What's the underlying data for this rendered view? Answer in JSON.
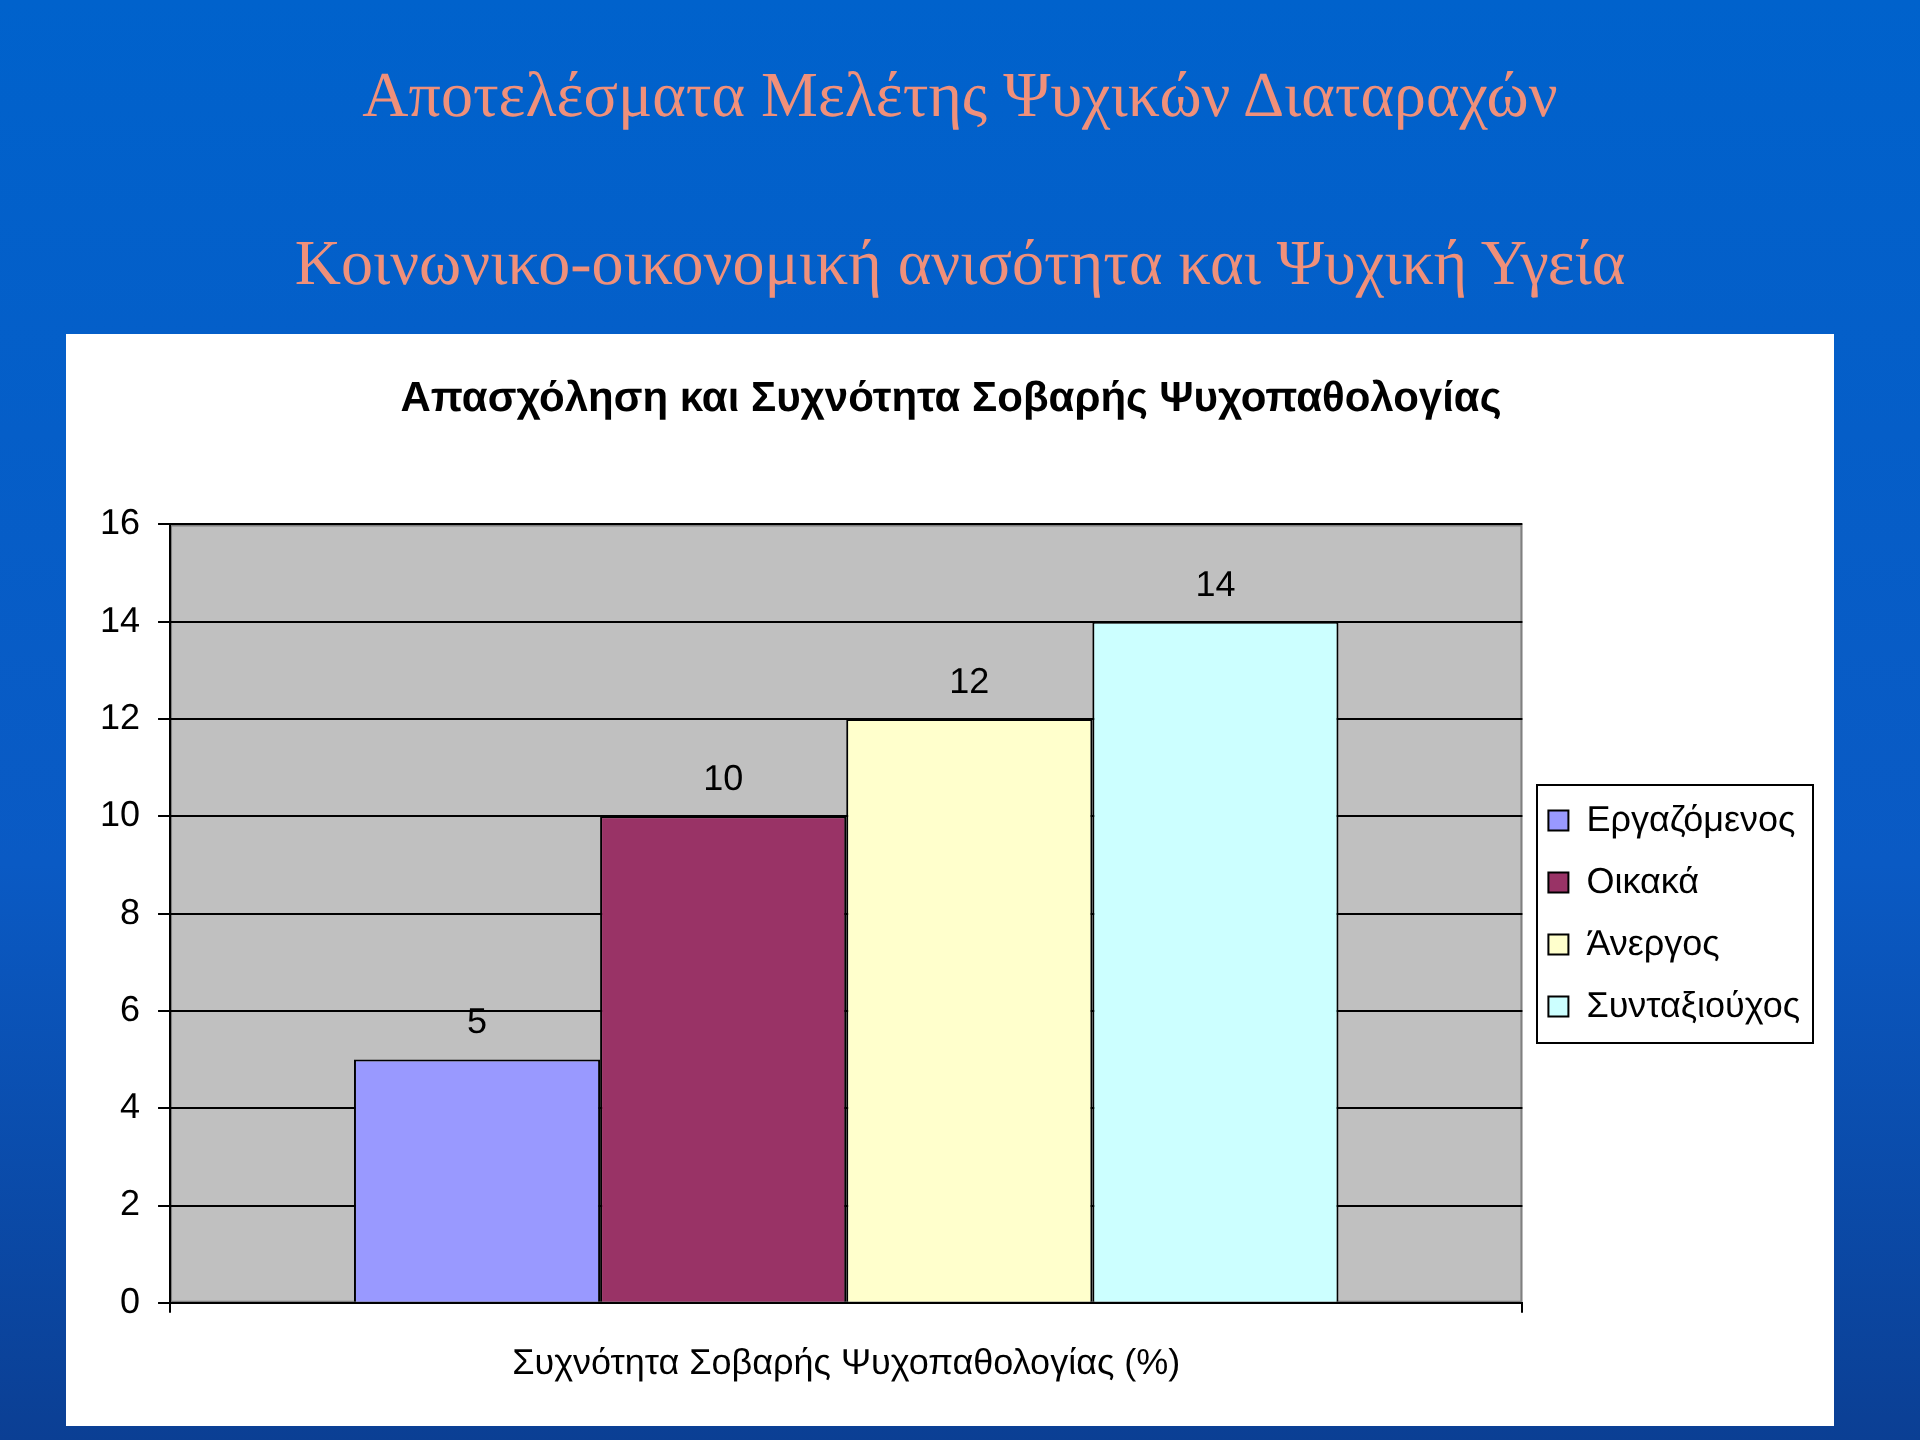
{
  "chart_data": {
    "type": "bar",
    "title": "Απασχόληση και Συχνότητα Σοβαρής Ψυχοπαθολογίας",
    "annotations": [
      "Αποτελέσματα Μελέτης Ψυχικών Διαταραχών",
      "Κοινωνικο-οικονομική ανισότητα και Ψυχική Υγεία"
    ],
    "categories": [
      "Συχνότητα Σοβαρής Ψυχοπαθολογίας (%)"
    ],
    "series": [
      {
        "name": "Εργαζόμενος",
        "color": "#9999ff",
        "values": [
          5
        ]
      },
      {
        "name": "Οικακά",
        "color": "#993366",
        "values": [
          10
        ]
      },
      {
        "name": "Άνεργος",
        "color": "#ffffcc",
        "values": [
          12
        ]
      },
      {
        "name": "Συνταξιούχος",
        "color": "#ccffff",
        "values": [
          14
        ]
      }
    ],
    "ylim": [
      0,
      16
    ],
    "yticks": [
      0,
      2,
      4,
      6,
      8,
      10,
      12,
      14,
      16
    ],
    "grid": "y",
    "legend": "right",
    "data_labels": true
  }
}
